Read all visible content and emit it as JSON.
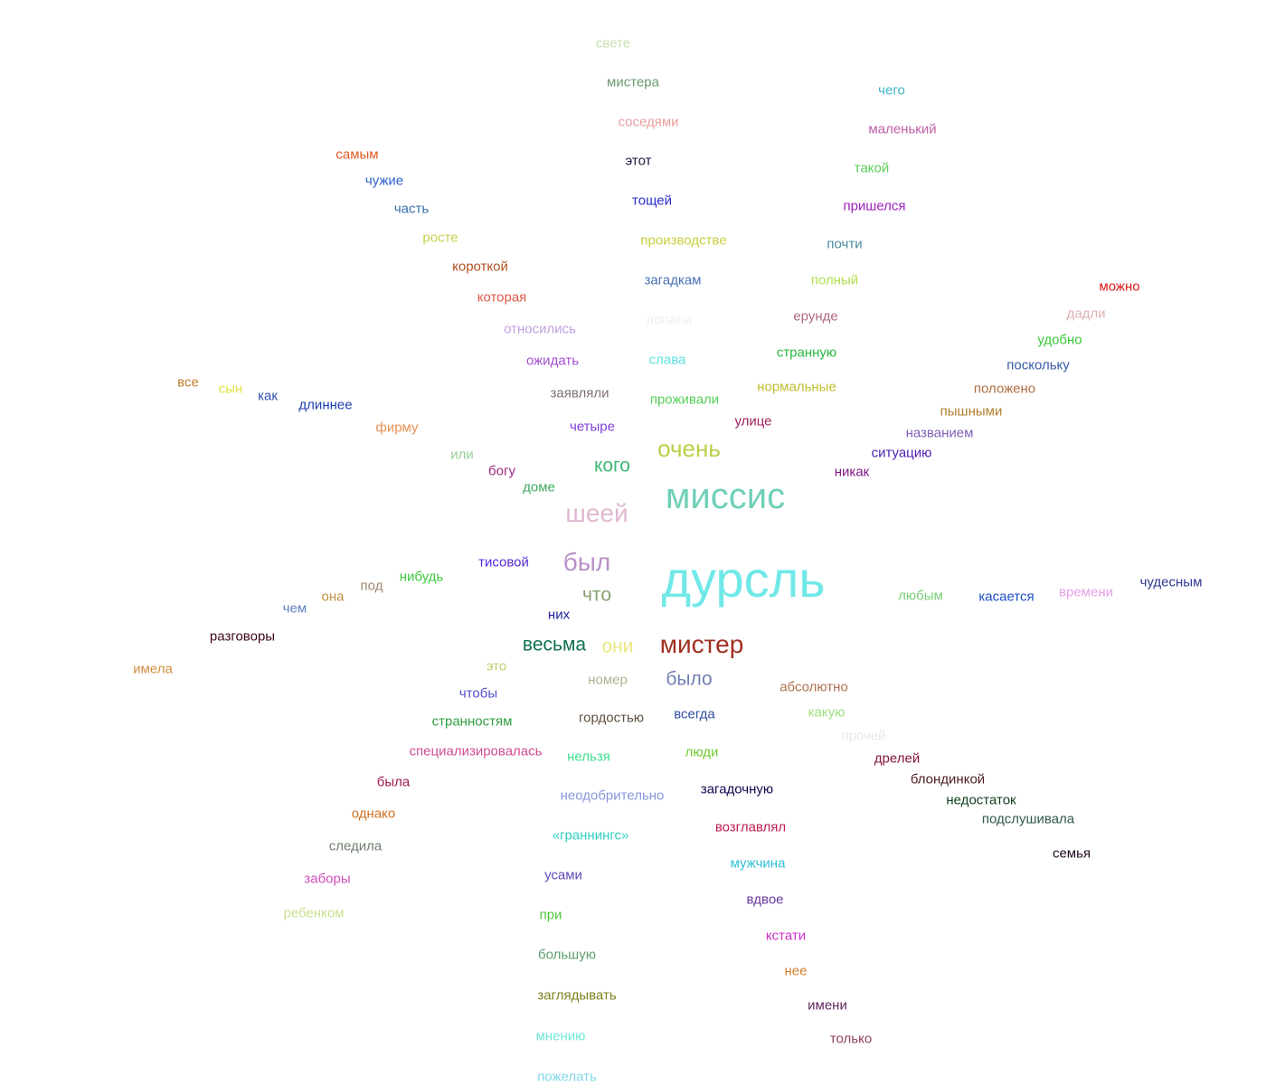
{
  "words": [
    {
      "text": "свете",
      "color": "#c8e0b0"
    },
    {
      "text": "мистера",
      "color": "#6b9a72"
    },
    {
      "text": "чего",
      "color": "#3fb6c8"
    },
    {
      "text": "соседями",
      "color": "#e8a0a0"
    },
    {
      "text": "маленький",
      "color": "#c060a8"
    },
    {
      "text": "самым",
      "color": "#e05a20"
    },
    {
      "text": "этот",
      "color": "#1a1a40"
    },
    {
      "text": "такой",
      "color": "#58d058"
    },
    {
      "text": "чужие",
      "color": "#3060d0"
    },
    {
      "text": "тощей",
      "color": "#2828c8"
    },
    {
      "text": "пришелся",
      "color": "#a020c0"
    },
    {
      "text": "часть",
      "color": "#3870a8"
    },
    {
      "text": "росте",
      "color": "#c8d050"
    },
    {
      "text": "производстве",
      "color": "#c8d040"
    },
    {
      "text": "почти",
      "color": "#4a8aa0"
    },
    {
      "text": "короткой",
      "color": "#b05020"
    },
    {
      "text": "загадкам",
      "color": "#4870b8"
    },
    {
      "text": "полный",
      "color": "#b0e050"
    },
    {
      "text": "можно",
      "color": "#e01818"
    },
    {
      "text": "которая",
      "color": "#e05848"
    },
    {
      "text": "дадли",
      "color": "#e0b0b0"
    },
    {
      "text": "попали",
      "color": "#f0f0e8"
    },
    {
      "text": "ерунде",
      "color": "#b06880"
    },
    {
      "text": "относились",
      "color": "#c0a0e0"
    },
    {
      "text": "удобно",
      "color": "#38c838"
    },
    {
      "text": "странную",
      "color": "#28b840"
    },
    {
      "text": "ожидать",
      "color": "#a050d0"
    },
    {
      "text": "слава",
      "color": "#60e0e0"
    },
    {
      "text": "поскольку",
      "color": "#3858a8"
    },
    {
      "text": "все",
      "color": "#c08030"
    },
    {
      "text": "нормальные",
      "color": "#c0c030"
    },
    {
      "text": "положено",
      "color": "#b07040"
    },
    {
      "text": "сын",
      "color": "#e0e040"
    },
    {
      "text": "заявляли",
      "color": "#807070"
    },
    {
      "text": "как",
      "color": "#3050b0"
    },
    {
      "text": "проживали",
      "color": "#58d058"
    },
    {
      "text": "длиннее",
      "color": "#2040b0"
    },
    {
      "text": "пышными",
      "color": "#b08030"
    },
    {
      "text": "улице",
      "color": "#a02060"
    },
    {
      "text": "названием",
      "color": "#8060b8"
    },
    {
      "text": "четыре",
      "color": "#8040d8"
    },
    {
      "text": "фирму",
      "color": "#e89050"
    },
    {
      "text": "очень",
      "color": "#b8d048"
    },
    {
      "text": "ситуацию",
      "color": "#5020b0"
    },
    {
      "text": "или",
      "color": "#98d098"
    },
    {
      "text": "кого",
      "color": "#40b878"
    },
    {
      "text": "богу",
      "color": "#a02880"
    },
    {
      "text": "никак",
      "color": "#801888"
    },
    {
      "text": "доме",
      "color": "#40a860"
    },
    {
      "text": "миссис",
      "color": "#70d0b8"
    },
    {
      "text": "шеей",
      "color": "#e0b8d0"
    },
    {
      "text": "тисовой",
      "color": "#5828d8"
    },
    {
      "text": "был",
      "color": "#b890c8"
    },
    {
      "text": "чудесным",
      "color": "#303890"
    },
    {
      "text": "дурсль",
      "color": "#70e8e8"
    },
    {
      "text": "нибудь",
      "color": "#40c840"
    },
    {
      "text": "под",
      "color": "#a08870"
    },
    {
      "text": "что",
      "color": "#88a070"
    },
    {
      "text": "любым",
      "color": "#78d078"
    },
    {
      "text": "касается",
      "color": "#2050c8"
    },
    {
      "text": "времени",
      "color": "#e8a0e8"
    },
    {
      "text": "она",
      "color": "#c09040"
    },
    {
      "text": "чем",
      "color": "#6080c0"
    },
    {
      "text": "них",
      "color": "#2020a0"
    },
    {
      "text": "разговоры",
      "color": "#400818"
    },
    {
      "text": "весьма",
      "color": "#107050"
    },
    {
      "text": "они",
      "color": "#e8e880"
    },
    {
      "text": "мистер",
      "color": "#a03020"
    },
    {
      "text": "имела",
      "color": "#d09040"
    },
    {
      "text": "это",
      "color": "#c0d070"
    },
    {
      "text": "номер",
      "color": "#b0b090"
    },
    {
      "text": "было",
      "color": "#7080b0"
    },
    {
      "text": "абсолютно",
      "color": "#b07050"
    },
    {
      "text": "чтобы",
      "color": "#5050c8"
    },
    {
      "text": "какую",
      "color": "#a0e080"
    },
    {
      "text": "гордостью",
      "color": "#605040"
    },
    {
      "text": "всегда",
      "color": "#3050a0"
    },
    {
      "text": "странностям",
      "color": "#30a040"
    },
    {
      "text": "прочей",
      "color": "#e8e8e8"
    },
    {
      "text": "специализировалась",
      "color": "#d05090"
    },
    {
      "text": "нельзя",
      "color": "#40e090"
    },
    {
      "text": "люди",
      "color": "#70c830"
    },
    {
      "text": "дрелей",
      "color": "#801838"
    },
    {
      "text": "блондинкой",
      "color": "#502020"
    },
    {
      "text": "была",
      "color": "#a01850"
    },
    {
      "text": "загадочную",
      "color": "#100850"
    },
    {
      "text": "неодобрительно",
      "color": "#8898d8"
    },
    {
      "text": "недостаток",
      "color": "#104020"
    },
    {
      "text": "однако",
      "color": "#d07020"
    },
    {
      "text": "подслушивала",
      "color": "#305850"
    },
    {
      "text": "возглавлял",
      "color": "#c02050"
    },
    {
      "text": "«граннингс»",
      "color": "#30d0c0"
    },
    {
      "text": "следила",
      "color": "#708070"
    },
    {
      "text": "семья",
      "color": "#200820"
    },
    {
      "text": "мужчина",
      "color": "#30c0d8"
    },
    {
      "text": "заборы",
      "color": "#d050b8"
    },
    {
      "text": "усами",
      "color": "#6048b8"
    },
    {
      "text": "вдвое",
      "color": "#6838a0"
    },
    {
      "text": "ребенком",
      "color": "#c8e090"
    },
    {
      "text": "при",
      "color": "#50c838"
    },
    {
      "text": "кстати",
      "color": "#d030c8"
    },
    {
      "text": "большую",
      "color": "#60a070"
    },
    {
      "text": "нее",
      "color": "#d08030"
    },
    {
      "text": "заглядывать",
      "color": "#808020"
    },
    {
      "text": "имени",
      "color": "#602860"
    },
    {
      "text": "мнению",
      "color": "#70e8d8"
    },
    {
      "text": "только",
      "color": "#904060"
    },
    {
      "text": "пожелать",
      "color": "#80d8e8"
    }
  ]
}
